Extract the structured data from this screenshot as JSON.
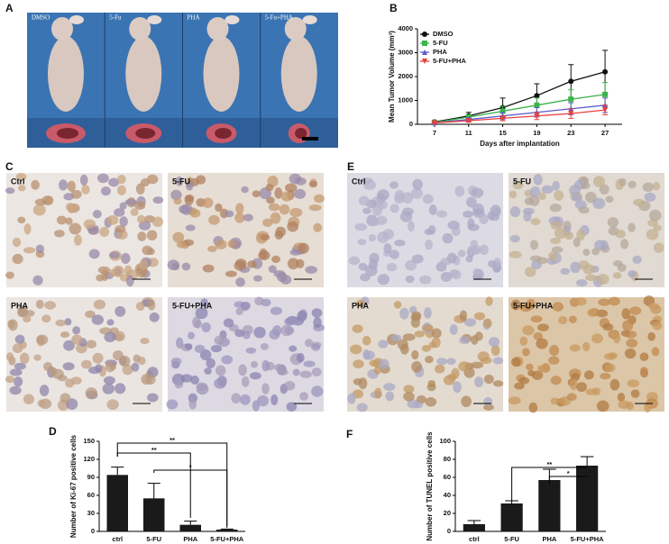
{
  "panel_labels": [
    "A",
    "B",
    "C",
    "D",
    "E",
    "F"
  ],
  "photo_a": {
    "labels": [
      "DMSO",
      "5-Fu",
      "PHA",
      "5-Fu+PHA"
    ]
  },
  "photo_c": {
    "labels": [
      "Ctrl",
      "5-FU",
      "PHA",
      "5-FU+PHA"
    ]
  },
  "photo_e": {
    "labels": [
      "Ctrl",
      "5-FU",
      "PHA",
      "5-FU+PHA"
    ]
  },
  "chart_data": [
    {
      "type": "line",
      "xlabel": "Days after implantation",
      "ylabel": "Mean Tumor Volume (mm³)",
      "x": [
        7,
        11,
        15,
        19,
        23,
        27
      ],
      "xlim": [
        5,
        29
      ],
      "xticks": [
        7,
        11,
        15,
        19,
        23,
        27
      ],
      "ylim": [
        0,
        4000
      ],
      "yticks": [
        0,
        1000,
        2000,
        3000,
        4000
      ],
      "legend": "upper left",
      "series": [
        {
          "name": "DMSO",
          "color": "#111111",
          "marker": "circle",
          "values": [
            100,
            350,
            700,
            1200,
            1800,
            2200
          ],
          "errors": [
            50,
            150,
            400,
            500,
            700,
            900
          ]
        },
        {
          "name": "5-FU",
          "color": "#3cb44b",
          "marker": "square",
          "values": [
            80,
            300,
            550,
            800,
            1050,
            1250
          ],
          "errors": [
            40,
            100,
            200,
            300,
            400,
            500
          ]
        },
        {
          "name": "PHA",
          "color": "#5a5acd",
          "marker": "triangle-up",
          "values": [
            70,
            200,
            350,
            500,
            650,
            800
          ],
          "errors": [
            30,
            80,
            150,
            200,
            250,
            300
          ]
        },
        {
          "name": "5-FU+PHA",
          "color": "#e8403a",
          "marker": "triangle-down",
          "values": [
            60,
            150,
            250,
            350,
            450,
            600
          ],
          "errors": [
            30,
            60,
            100,
            150,
            200,
            200
          ]
        }
      ]
    },
    {
      "type": "bar",
      "ylabel": "Number of Ki-67 positive cells",
      "color": "#1a1a1a",
      "categories": [
        "ctrl",
        "5-FU",
        "PHA",
        "5-FU+PHA"
      ],
      "values": [
        94,
        55,
        11,
        3
      ],
      "errors": [
        13,
        25,
        6,
        1
      ],
      "ylim": [
        0,
        150
      ],
      "yticks": [
        0,
        30,
        60,
        90,
        120,
        150
      ],
      "annotations": [
        "**",
        "**",
        "*"
      ]
    },
    {
      "type": "bar",
      "ylabel": "Number of TUNEL positive cells",
      "color": "#1a1a1a",
      "categories": [
        "ctrl",
        "5-FU",
        "PHA",
        "5-FU+PHA"
      ],
      "values": [
        8,
        31,
        57,
        73
      ],
      "errors": [
        4,
        3,
        12,
        10
      ],
      "ylim": [
        0,
        100
      ],
      "yticks": [
        0,
        20,
        40,
        60,
        80,
        100
      ],
      "annotations": [
        "**",
        "*"
      ]
    }
  ]
}
